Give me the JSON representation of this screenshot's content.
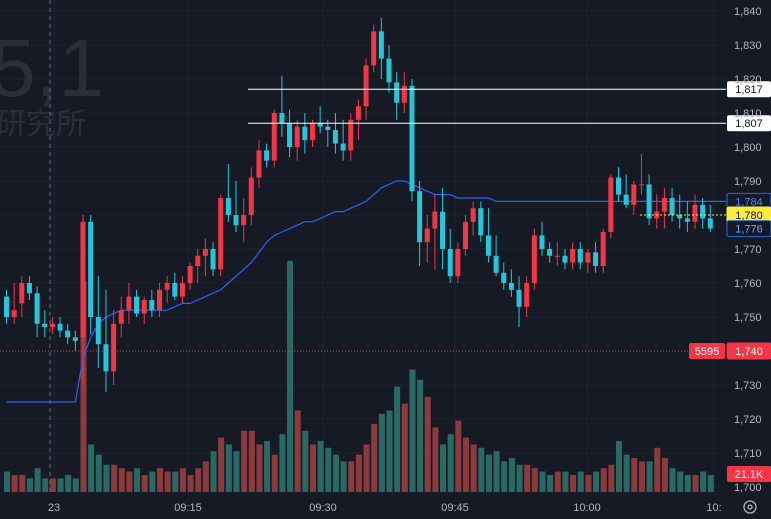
{
  "watermark": {
    "big": "5,1",
    "small": "研究所"
  },
  "colors": {
    "background": "#161a25",
    "grid": "#1e222d",
    "up": "#f23645",
    "down": "#22ab94",
    "up_candle": "#f23645",
    "down_candle": "#26c6da",
    "up_volume": "#8c3a3e",
    "down_volume": "#2a6a64",
    "ma_line": "#2962ff",
    "level_line": "#ffffff",
    "price_line": "#f23645",
    "highlight": "#ffeb3b"
  },
  "chart_data": {
    "type": "candlestick",
    "x_axis": {
      "tick_labels": [
        "23",
        "09:15",
        "09:30",
        "09:45",
        "10:00",
        "10:"
      ]
    },
    "y_axis": {
      "range": [
        1700,
        1840
      ],
      "ticks": [
        1700,
        1710,
        1720,
        1730,
        1740,
        1750,
        1760,
        1770,
        1780,
        1790,
        1800,
        1810,
        1820,
        1830,
        1840
      ],
      "tick_labels": [
        "1,700",
        "1,710",
        "1,720",
        "1,730",
        "1,740",
        "1,750",
        "1,760",
        "1,770",
        "1,780",
        "1,790",
        "1,800",
        "1,810",
        "1,820",
        "1,830",
        "1,840"
      ]
    },
    "horizontal_levels": [
      {
        "value": 1817,
        "label": "1,817"
      },
      {
        "value": 1807,
        "label": "1,807"
      }
    ],
    "price_tags": [
      {
        "value": 1784,
        "label": "1,784",
        "style": "ma"
      },
      {
        "value": 1780,
        "label": "1,780",
        "style": "current"
      },
      {
        "value": 1776,
        "label": "1,776",
        "style": "ma_fill"
      },
      {
        "value": 1740,
        "label": "1,740",
        "style": "red",
        "prefix": "5595"
      }
    ],
    "volume_tag": "21.1K",
    "candles": [
      [
        1756,
        1758,
        1748,
        1750
      ],
      [
        1750,
        1760,
        1748,
        1752
      ],
      [
        1754,
        1762,
        1750,
        1760
      ],
      [
        1760,
        1762,
        1755,
        1757
      ],
      [
        1757,
        1759,
        1744,
        1748
      ],
      [
        1748,
        1752,
        1744,
        1747
      ],
      [
        1747,
        1750,
        1745,
        1748
      ],
      [
        1748,
        1750,
        1744,
        1746
      ],
      [
        1746,
        1748,
        1742,
        1744
      ],
      [
        1744,
        1746,
        1740,
        1743
      ],
      [
        1744,
        1780,
        1730,
        1778
      ],
      [
        1778,
        1780,
        1745,
        1750
      ],
      [
        1750,
        1762,
        1735,
        1742
      ],
      [
        1742,
        1758,
        1728,
        1734
      ],
      [
        1734,
        1752,
        1730,
        1748
      ],
      [
        1748,
        1756,
        1744,
        1752
      ],
      [
        1752,
        1760,
        1748,
        1756
      ],
      [
        1756,
        1758,
        1750,
        1751
      ],
      [
        1751,
        1756,
        1748,
        1755
      ],
      [
        1755,
        1758,
        1750,
        1752
      ],
      [
        1752,
        1760,
        1750,
        1758
      ],
      [
        1758,
        1762,
        1754,
        1760
      ],
      [
        1760,
        1763,
        1755,
        1756
      ],
      [
        1756,
        1762,
        1754,
        1760
      ],
      [
        1760,
        1766,
        1758,
        1765
      ],
      [
        1765,
        1770,
        1760,
        1768
      ],
      [
        1768,
        1773,
        1762,
        1770
      ],
      [
        1770,
        1772,
        1762,
        1764
      ],
      [
        1764,
        1786,
        1762,
        1785
      ],
      [
        1785,
        1795,
        1778,
        1780
      ],
      [
        1780,
        1790,
        1775,
        1777
      ],
      [
        1777,
        1785,
        1772,
        1780
      ],
      [
        1780,
        1794,
        1777,
        1791
      ],
      [
        1791,
        1802,
        1788,
        1799
      ],
      [
        1799,
        1801,
        1794,
        1796
      ],
      [
        1796,
        1811,
        1794,
        1810
      ],
      [
        1810,
        1821,
        1803,
        1807
      ],
      [
        1807,
        1811,
        1797,
        1800
      ],
      [
        1800,
        1808,
        1796,
        1806
      ],
      [
        1806,
        1810,
        1798,
        1802
      ],
      [
        1802,
        1808,
        1800,
        1807
      ],
      [
        1807,
        1812,
        1804,
        1806
      ],
      [
        1806,
        1808,
        1800,
        1805
      ],
      [
        1805,
        1810,
        1798,
        1801
      ],
      [
        1801,
        1808,
        1796,
        1799
      ],
      [
        1799,
        1810,
        1796,
        1808
      ],
      [
        1808,
        1814,
        1802,
        1812
      ],
      [
        1812,
        1826,
        1808,
        1824
      ],
      [
        1824,
        1836,
        1822,
        1834
      ],
      [
        1834,
        1838,
        1820,
        1826
      ],
      [
        1826,
        1830,
        1816,
        1819
      ],
      [
        1819,
        1822,
        1808,
        1813
      ],
      [
        1813,
        1822,
        1810,
        1818
      ],
      [
        1818,
        1820,
        1784,
        1787
      ],
      [
        1787,
        1790,
        1765,
        1772
      ],
      [
        1772,
        1780,
        1766,
        1776
      ],
      [
        1776,
        1786,
        1764,
        1781
      ],
      [
        1781,
        1788,
        1764,
        1770
      ],
      [
        1770,
        1776,
        1760,
        1762
      ],
      [
        1762,
        1772,
        1760,
        1770
      ],
      [
        1770,
        1780,
        1768,
        1778
      ],
      [
        1778,
        1784,
        1774,
        1782
      ],
      [
        1782,
        1784,
        1772,
        1774
      ],
      [
        1774,
        1782,
        1766,
        1768
      ],
      [
        1768,
        1774,
        1762,
        1763
      ],
      [
        1763,
        1766,
        1758,
        1760
      ],
      [
        1760,
        1764,
        1756,
        1758
      ],
      [
        1758,
        1762,
        1747,
        1753
      ],
      [
        1753,
        1762,
        1750,
        1760
      ],
      [
        1760,
        1776,
        1758,
        1774
      ],
      [
        1774,
        1778,
        1768,
        1770
      ],
      [
        1770,
        1772,
        1766,
        1768
      ],
      [
        1768,
        1772,
        1765,
        1768
      ],
      [
        1768,
        1770,
        1764,
        1766
      ],
      [
        1766,
        1772,
        1764,
        1770
      ],
      [
        1770,
        1772,
        1764,
        1766
      ],
      [
        1766,
        1770,
        1763,
        1769
      ],
      [
        1769,
        1772,
        1763,
        1765
      ],
      [
        1765,
        1776,
        1763,
        1775
      ],
      [
        1775,
        1792,
        1773,
        1791
      ],
      [
        1791,
        1794,
        1784,
        1786
      ],
      [
        1786,
        1792,
        1782,
        1783
      ],
      [
        1783,
        1790,
        1780,
        1789
      ],
      [
        1789,
        1798,
        1786,
        1789
      ],
      [
        1789,
        1792,
        1777,
        1779
      ],
      [
        1779,
        1786,
        1776,
        1781
      ],
      [
        1781,
        1788,
        1776,
        1785
      ],
      [
        1785,
        1788,
        1778,
        1780
      ],
      [
        1780,
        1786,
        1776,
        1779
      ],
      [
        1779,
        1784,
        1775,
        1778
      ],
      [
        1778,
        1786,
        1776,
        1783
      ],
      [
        1783,
        1785,
        1776,
        1779
      ],
      [
        1779,
        1783,
        1775,
        1776
      ]
    ],
    "volumes": [
      6,
      5,
      5,
      4,
      7,
      4,
      4,
      4,
      5,
      4,
      62,
      14,
      11,
      8,
      8,
      7,
      6,
      7,
      5,
      6,
      7,
      6,
      6,
      7,
      5,
      7,
      9,
      12,
      16,
      14,
      12,
      18,
      18,
      14,
      15,
      11,
      17,
      68,
      24,
      18,
      14,
      15,
      13,
      11,
      9,
      9,
      11,
      14,
      20,
      23,
      24,
      31,
      26,
      36,
      33,
      28,
      19,
      14,
      17,
      21,
      16,
      14,
      13,
      11,
      12,
      9,
      10,
      8,
      8,
      7,
      6,
      5,
      6,
      6,
      5,
      6,
      5,
      6,
      7,
      8,
      15,
      11,
      10,
      9,
      9,
      13,
      10,
      7,
      6,
      5,
      5,
      6,
      5
    ],
    "ma": [
      1725,
      1725,
      1725,
      1725,
      1725,
      1725,
      1725,
      1725,
      1725,
      1725,
      1738,
      1744,
      1748,
      1750,
      1751,
      1752,
      1752,
      1752,
      1752,
      1752,
      1752,
      1752,
      1753,
      1754,
      1754,
      1755,
      1756,
      1757,
      1758,
      1760,
      1762,
      1764,
      1766,
      1769,
      1772,
      1774,
      1775,
      1776,
      1777,
      1778,
      1778,
      1779,
      1780,
      1781,
      1781,
      1782,
      1783,
      1784,
      1786,
      1788,
      1789,
      1790,
      1790,
      1789,
      1788,
      1787,
      1786,
      1786,
      1786,
      1785,
      1785,
      1785,
      1785,
      1785,
      1784,
      1784,
      1784,
      1784,
      1784,
      1784,
      1784,
      1784,
      1784,
      1784,
      1784,
      1784,
      1784,
      1784,
      1784,
      1784,
      1784,
      1784,
      1784,
      1784,
      1784,
      1784,
      1784,
      1784,
      1784,
      1784,
      1784,
      1784,
      1784
    ]
  }
}
